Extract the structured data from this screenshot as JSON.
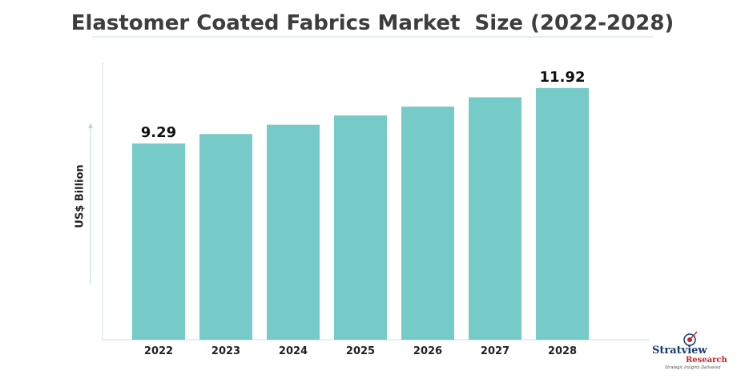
{
  "chart_data": {
    "type": "bar",
    "title": "Elastomer Coated Fabrics Market  Size (2022-2028)",
    "ylabel": "US$ Billion",
    "xlabel": "",
    "categories": [
      "2022",
      "2023",
      "2024",
      "2025",
      "2026",
      "2027",
      "2028"
    ],
    "values": [
      9.29,
      9.74,
      10.18,
      10.62,
      11.04,
      11.48,
      11.92
    ],
    "data_labels": {
      "0": "9.29",
      "6": "11.92"
    },
    "ylim": [
      0,
      14
    ],
    "grid": false,
    "bar_color": "#76cbc8",
    "axis_color": "#dde8ef"
  },
  "branding": {
    "name": "Stratview",
    "sub": "Research",
    "tagline": "Strategic Insights Delivered",
    "colors": {
      "name": "#1a3a6e",
      "sub": "#c0282d"
    }
  }
}
